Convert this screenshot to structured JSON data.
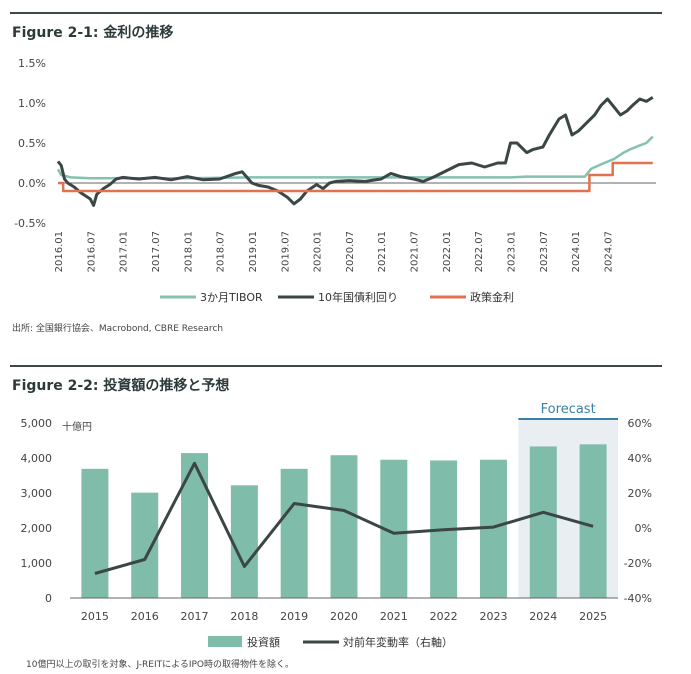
{
  "figure1": {
    "title_prefix": "Figure 2-1:",
    "title_text": "金利の推移",
    "source": "出所: 全国銀行協会、Macrobond, CBRE Research"
  },
  "figure2": {
    "title_prefix": "Figure 2-2:",
    "title_text": "投資額の推移と予想",
    "footnote": "10億円以上の取引を対象、J-REITによるIPO時の取得物件を除く。",
    "forecast_label": "Forecast"
  },
  "colors": {
    "tibor": "#84c1ae",
    "jgb": "#3b4646",
    "policy": "#e0734f",
    "bar": "#7fbcaa",
    "yoy": "#3b4646",
    "forecast_bg": "#e9eef2",
    "forecast_line": "#3a7fa8"
  },
  "chart_data": [
    {
      "type": "line",
      "title": "金利の推移",
      "y_ticks": [
        "1.5%",
        "1.0%",
        "0.5%",
        "0.0%",
        "-0.5%"
      ],
      "y_tick_values": [
        1.5,
        1.0,
        0.5,
        0.0,
        -0.5
      ],
      "ylim": [
        -0.5,
        1.5
      ],
      "x_ticks": [
        "2016.01",
        "2016.07",
        "2017.01",
        "2017.07",
        "2018.01",
        "2018.07",
        "2019.01",
        "2019.07",
        "2020.01",
        "2020.07",
        "2021.01",
        "2021.07",
        "2022.01",
        "2022.07",
        "2023.01",
        "2023.07",
        "2024.01",
        "2024.07"
      ],
      "xlim": [
        2016.0,
        2025.25
      ],
      "series": [
        {
          "name": "3か月TIBOR",
          "color_key": "tibor",
          "points": [
            [
              2016.0,
              0.17
            ],
            [
              2016.05,
              0.1
            ],
            [
              2016.2,
              0.07
            ],
            [
              2016.5,
              0.06
            ],
            [
              2017.0,
              0.06
            ],
            [
              2018.0,
              0.06
            ],
            [
              2019.0,
              0.07
            ],
            [
              2020.0,
              0.07
            ],
            [
              2021.0,
              0.07
            ],
            [
              2022.0,
              0.07
            ],
            [
              2022.75,
              0.07
            ],
            [
              2023.0,
              0.07
            ],
            [
              2023.25,
              0.08
            ],
            [
              2023.5,
              0.08
            ],
            [
              2024.0,
              0.08
            ],
            [
              2024.15,
              0.08
            ],
            [
              2024.25,
              0.18
            ],
            [
              2024.45,
              0.25
            ],
            [
              2024.6,
              0.3
            ],
            [
              2024.75,
              0.38
            ],
            [
              2024.85,
              0.42
            ],
            [
              2025.0,
              0.47
            ],
            [
              2025.1,
              0.5
            ],
            [
              2025.2,
              0.58
            ]
          ]
        },
        {
          "name": "10年国債利回り",
          "color_key": "jgb",
          "points": [
            [
              2016.0,
              0.27
            ],
            [
              2016.05,
              0.22
            ],
            [
              2016.1,
              0.05
            ],
            [
              2016.15,
              0.0
            ],
            [
              2016.25,
              -0.05
            ],
            [
              2016.35,
              -0.12
            ],
            [
              2016.5,
              -0.2
            ],
            [
              2016.55,
              -0.28
            ],
            [
              2016.6,
              -0.14
            ],
            [
              2016.7,
              -0.07
            ],
            [
              2016.8,
              -0.02
            ],
            [
              2016.9,
              0.05
            ],
            [
              2017.0,
              0.07
            ],
            [
              2017.25,
              0.05
            ],
            [
              2017.5,
              0.07
            ],
            [
              2017.75,
              0.04
            ],
            [
              2018.0,
              0.08
            ],
            [
              2018.25,
              0.04
            ],
            [
              2018.5,
              0.05
            ],
            [
              2018.75,
              0.12
            ],
            [
              2018.85,
              0.14
            ],
            [
              2019.0,
              0.0
            ],
            [
              2019.1,
              -0.03
            ],
            [
              2019.25,
              -0.05
            ],
            [
              2019.4,
              -0.1
            ],
            [
              2019.55,
              -0.18
            ],
            [
              2019.65,
              -0.26
            ],
            [
              2019.75,
              -0.2
            ],
            [
              2019.85,
              -0.1
            ],
            [
              2020.0,
              -0.02
            ],
            [
              2020.1,
              -0.07
            ],
            [
              2020.2,
              0.0
            ],
            [
              2020.3,
              0.02
            ],
            [
              2020.5,
              0.03
            ],
            [
              2020.75,
              0.02
            ],
            [
              2021.0,
              0.05
            ],
            [
              2021.15,
              0.12
            ],
            [
              2021.3,
              0.08
            ],
            [
              2021.5,
              0.05
            ],
            [
              2021.65,
              0.02
            ],
            [
              2021.8,
              0.07
            ],
            [
              2022.0,
              0.15
            ],
            [
              2022.2,
              0.23
            ],
            [
              2022.4,
              0.25
            ],
            [
              2022.6,
              0.2
            ],
            [
              2022.8,
              0.25
            ],
            [
              2022.92,
              0.25
            ],
            [
              2023.0,
              0.5
            ],
            [
              2023.1,
              0.5
            ],
            [
              2023.25,
              0.38
            ],
            [
              2023.35,
              0.42
            ],
            [
              2023.5,
              0.45
            ],
            [
              2023.6,
              0.6
            ],
            [
              2023.75,
              0.8
            ],
            [
              2023.85,
              0.85
            ],
            [
              2023.95,
              0.6
            ],
            [
              2024.05,
              0.65
            ],
            [
              2024.15,
              0.73
            ],
            [
              2024.3,
              0.85
            ],
            [
              2024.4,
              0.97
            ],
            [
              2024.5,
              1.05
            ],
            [
              2024.6,
              0.95
            ],
            [
              2024.7,
              0.85
            ],
            [
              2024.8,
              0.9
            ],
            [
              2024.9,
              0.98
            ],
            [
              2025.0,
              1.05
            ],
            [
              2025.1,
              1.02
            ],
            [
              2025.2,
              1.07
            ]
          ]
        },
        {
          "name": "政策金利",
          "color_key": "policy",
          "points": [
            [
              2016.0,
              0.0
            ],
            [
              2016.08,
              0.0
            ],
            [
              2016.08,
              -0.1
            ],
            [
              2024.22,
              -0.1
            ],
            [
              2024.22,
              0.1
            ],
            [
              2024.58,
              0.1
            ],
            [
              2024.58,
              0.25
            ],
            [
              2025.2,
              0.25
            ]
          ]
        }
      ]
    },
    {
      "type": "bar",
      "title": "投資額の推移と予想",
      "categories": [
        "2015",
        "2016",
        "2017",
        "2018",
        "2019",
        "2020",
        "2021",
        "2022",
        "2023",
        "2024",
        "2025"
      ],
      "series": [
        {
          "name": "投資額",
          "axis": "left",
          "values": [
            3690,
            3010,
            4140,
            3220,
            3690,
            4080,
            3950,
            3930,
            3950,
            4330,
            4390
          ]
        },
        {
          "name": "対前年変動率（右軸）",
          "axis": "right",
          "type": "line",
          "values": [
            -26,
            -18,
            37,
            -22,
            14,
            10,
            -3,
            -1,
            0.5,
            9,
            1
          ]
        }
      ],
      "ylim_left": [
        0,
        5000
      ],
      "y_ticks_left": [
        "5,000",
        "4,000",
        "3,000",
        "2,000",
        "1,000",
        "0"
      ],
      "ylabel_left": "十億円",
      "ylim_right": [
        -40,
        60
      ],
      "y_ticks_right": [
        "60%",
        "40%",
        "20%",
        "0%",
        "-20%",
        "-40%"
      ],
      "forecast_categories": [
        "2024",
        "2025"
      ]
    }
  ]
}
